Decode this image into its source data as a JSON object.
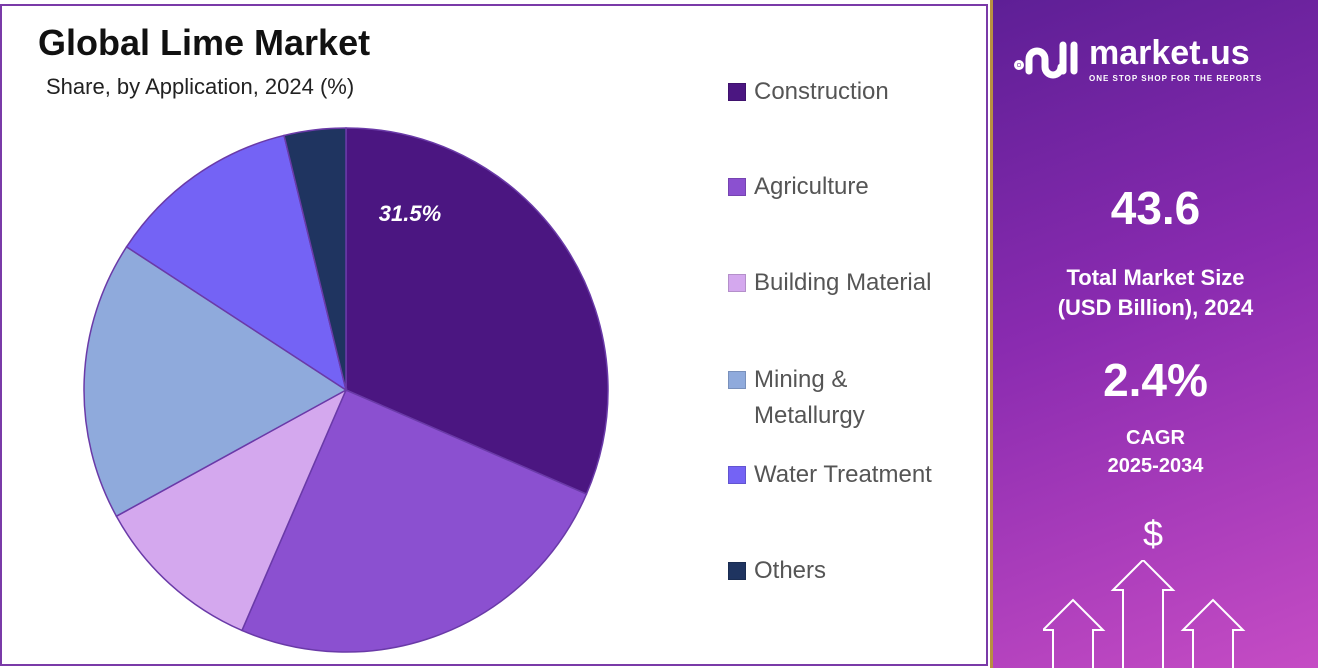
{
  "title": "Global Lime Market",
  "subtitle": "Share, by Application, 2024 (%)",
  "chart_data": {
    "type": "pie",
    "title": "Global Lime Market",
    "subtitle": "Share, by Application, 2024 (%)",
    "categories": [
      "Construction",
      "Agriculture",
      "Building Material",
      "Mining & Metallurgy",
      "Water Treatment",
      "Others"
    ],
    "values": [
      31.5,
      25.0,
      10.5,
      17.2,
      12.0,
      3.8
    ],
    "colors": [
      "#4b1681",
      "#8b50d0",
      "#d4a8ee",
      "#8faadc",
      "#7463f5",
      "#1f3460"
    ],
    "data_labels": [
      "31.5%",
      "",
      "",
      "",
      "",
      ""
    ],
    "legend_position": "right"
  },
  "legend": [
    {
      "label": "Construction"
    },
    {
      "label": "Agriculture"
    },
    {
      "label": "Building Material"
    },
    {
      "label": "Mining &\nMetallurgy"
    },
    {
      "label": "Water Treatment"
    },
    {
      "label": "Others"
    }
  ],
  "side": {
    "logo": "market.us",
    "tagline": "ONE STOP SHOP FOR THE REPORTS",
    "market_size": "43.6",
    "market_size_label1": "Total Market Size",
    "market_size_label2": "(USD Billion), 2024",
    "cagr": "2.4%",
    "cagr_label1": "CAGR",
    "cagr_label2": "2025-2034",
    "dollar": "$"
  }
}
